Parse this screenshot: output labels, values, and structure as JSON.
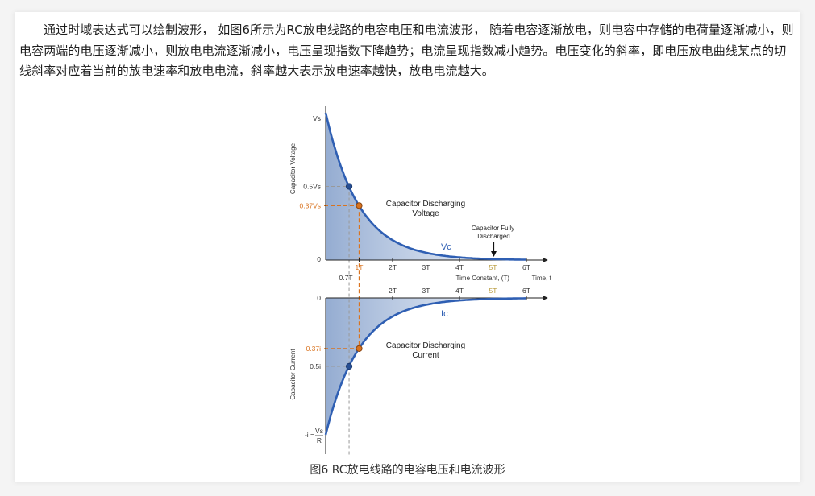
{
  "article": {
    "paragraph": "通过时域表达式可以绘制波形， 如图6所示为RC放电线路的电容电压和电流波形， 随着电容逐渐放电，则电容中存储的电荷量逐渐减小，则电容两端的电压逐渐减小，则放电电流逐渐减小，电压呈现指数下降趋势；电流呈现指数减小趋势。电压变化的斜率，即电压放电曲线某点的切线斜率对应着当前的放电速率和放电电流，斜率越大表示放电速率越快，放电电流越大。",
    "caption": "图6 RC放电线路的电容电压和电流波形"
  },
  "chart_data": [
    {
      "type": "area",
      "ylabel": "Capacitor Voltage",
      "xlabel": "Time Constant, (T)",
      "x_axis_end_label": "Time, t",
      "y_tick_labels": [
        "Vs",
        "0.5Vs",
        "0.37Vs",
        "0"
      ],
      "x_tick_labels": [
        "1T",
        "2T",
        "3T",
        "4T",
        "5T",
        "6T"
      ],
      "extra_x_label": "0.7T",
      "x": [
        0,
        0.7,
        1,
        2,
        3,
        4,
        5,
        6
      ],
      "values": [
        1.0,
        0.5,
        0.37,
        0.135,
        0.05,
        0.018,
        0.007,
        0.002
      ],
      "xlim": [
        0,
        6
      ],
      "ylim": [
        0,
        1
      ],
      "curve_label": "Vc",
      "annotations": [
        "Capacitor Discharging",
        "Voltage",
        "Capacitor Fully",
        "Discharged"
      ],
      "marked_points": [
        [
          0.7,
          0.5
        ],
        [
          1,
          0.37
        ]
      ],
      "colors": {
        "curve": "#2f5fb3",
        "marker_orange": "#d9731f",
        "fill": "#8fa8cf"
      }
    },
    {
      "type": "area",
      "ylabel": "Capacitor Current",
      "y_tick_labels": [
        "0",
        "0.37i",
        "0.5i"
      ],
      "x_tick_labels": [
        "2T",
        "3T",
        "4T",
        "5T",
        "6T"
      ],
      "bottom_formula": {
        "prefix": "-i =",
        "numerator": "Vs",
        "denominator": "R"
      },
      "x": [
        0,
        0.7,
        1,
        2,
        3,
        4,
        5,
        6
      ],
      "values": [
        -1.0,
        -0.5,
        -0.37,
        -0.135,
        -0.05,
        -0.018,
        -0.007,
        -0.002
      ],
      "xlim": [
        0,
        6
      ],
      "ylim": [
        -1,
        0
      ],
      "curve_label": "Ic",
      "annotations": [
        "Capacitor Discharging",
        "Current"
      ],
      "marked_points": [
        [
          0.7,
          -0.5
        ],
        [
          1,
          -0.37
        ]
      ]
    }
  ]
}
